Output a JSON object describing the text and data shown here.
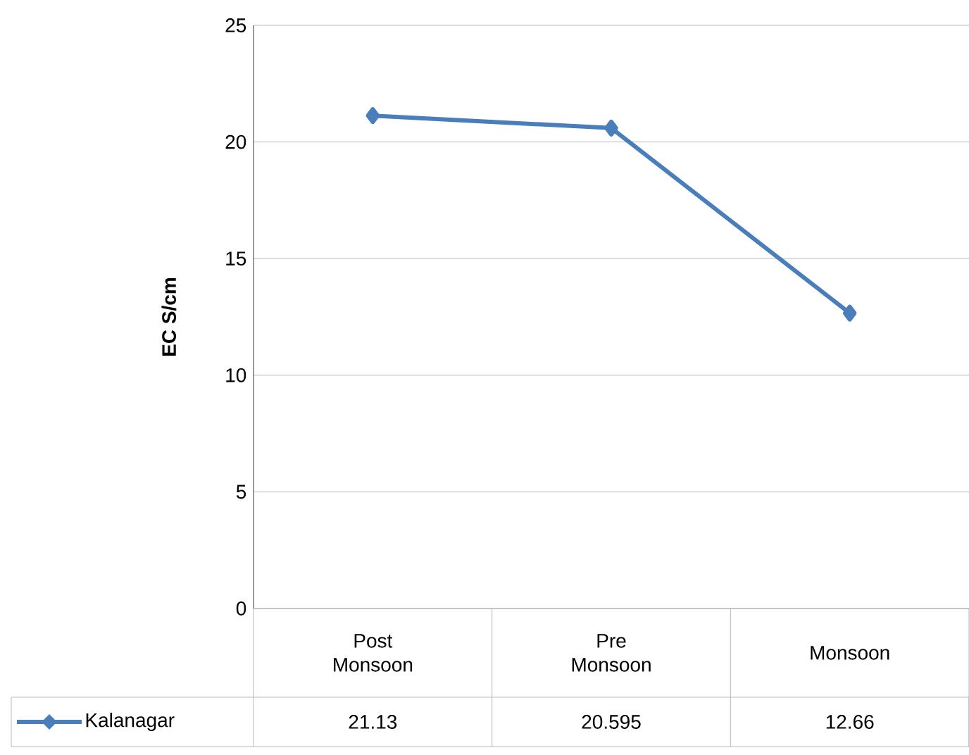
{
  "chart_data": {
    "type": "line",
    "ylabel": "EC S/cm",
    "categories": [
      "Post Monsoon",
      "Pre Monsoon",
      "Monsoon"
    ],
    "series": [
      {
        "name": "Kalanagar",
        "color": "#4a7ebb",
        "values": [
          21.13,
          20.595,
          12.66
        ]
      }
    ],
    "ylim": [
      0,
      25
    ],
    "yticks": [
      0,
      5,
      10,
      15,
      20,
      25
    ],
    "grid": "y",
    "marker": "diamond",
    "line_style": "solid",
    "data_labels": true,
    "legend": "bottom"
  }
}
